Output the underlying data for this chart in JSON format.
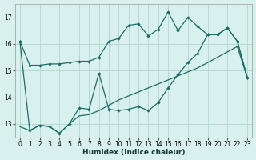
{
  "xlabel": "Humidex (Indice chaleur)",
  "bg_color": "#d8f0ee",
  "grid_color": "#b8d8d4",
  "line_color": "#1e6b65",
  "xlim": [
    -0.5,
    23.5
  ],
  "ylim": [
    12.5,
    17.5
  ],
  "xticks": [
    0,
    1,
    2,
    3,
    4,
    5,
    6,
    7,
    8,
    9,
    10,
    11,
    12,
    13,
    14,
    15,
    16,
    17,
    18,
    19,
    20,
    21,
    22,
    23
  ],
  "yticks": [
    13,
    14,
    15,
    16,
    17
  ],
  "line1_x": [
    0,
    1,
    2,
    3,
    4,
    5,
    6,
    7,
    8,
    9,
    10,
    11,
    12,
    13,
    14,
    15,
    16,
    17,
    18,
    19,
    20,
    21,
    22,
    23
  ],
  "line1_y": [
    16.1,
    15.2,
    15.2,
    15.25,
    15.25,
    15.3,
    15.35,
    15.35,
    15.5,
    16.1,
    16.2,
    16.7,
    16.75,
    16.3,
    16.55,
    17.2,
    16.5,
    17.0,
    16.65,
    16.35,
    16.35,
    16.6,
    16.1,
    14.75
  ],
  "line2_x": [
    0,
    1,
    2,
    3,
    4,
    5,
    6,
    7,
    8,
    9,
    10,
    11,
    12,
    13,
    14,
    15,
    16,
    17,
    18,
    19,
    20,
    21,
    22,
    23
  ],
  "line2_y": [
    16.1,
    12.75,
    12.95,
    12.9,
    12.65,
    13.0,
    13.6,
    13.55,
    14.9,
    13.55,
    13.5,
    13.55,
    13.65,
    13.5,
    13.8,
    14.35,
    14.85,
    15.3,
    15.65,
    16.35,
    16.35,
    16.6,
    16.1,
    14.75
  ],
  "line3_x": [
    0,
    1,
    2,
    3,
    4,
    5,
    6,
    7,
    8,
    9,
    10,
    11,
    12,
    13,
    14,
    15,
    16,
    17,
    18,
    19,
    20,
    21,
    22,
    23
  ],
  "line3_y": [
    12.9,
    12.75,
    12.95,
    12.9,
    12.65,
    13.0,
    13.3,
    13.35,
    13.5,
    13.7,
    13.9,
    14.05,
    14.2,
    14.35,
    14.5,
    14.65,
    14.8,
    14.95,
    15.1,
    15.3,
    15.5,
    15.7,
    15.9,
    14.75
  ]
}
